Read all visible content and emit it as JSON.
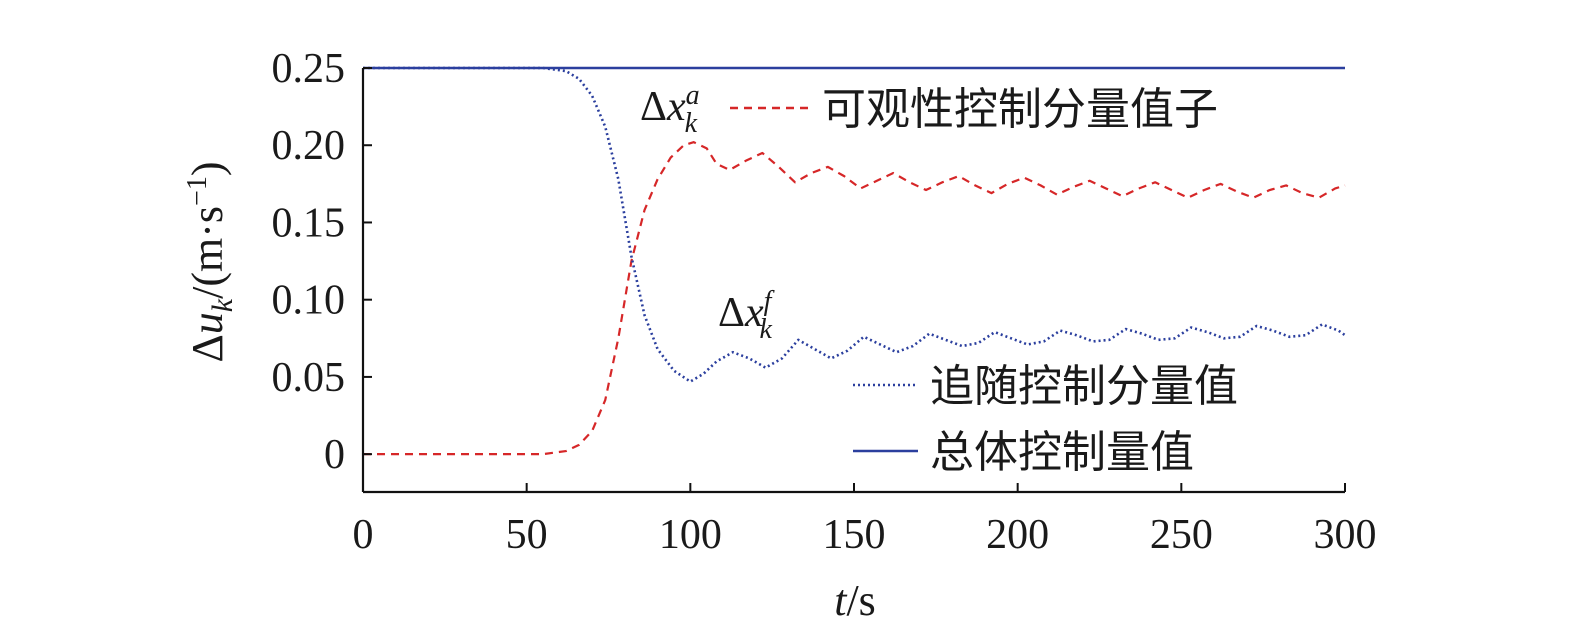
{
  "chart_data": {
    "type": "line",
    "title": "",
    "xlabel": {
      "var": "t",
      "unit": "/s"
    },
    "ylabel": {
      "prefix": "Δ",
      "var": "u",
      "sub": "k",
      "unit": "/(m·s",
      "sup": "−1",
      "close": ")"
    },
    "xlim": [
      0,
      300
    ],
    "ylim": [
      -0.0245,
      0.25
    ],
    "xticks": [
      0,
      50,
      100,
      150,
      200,
      250,
      300
    ],
    "xtick_labels": [
      "0",
      "50",
      "100",
      "150",
      "200",
      "250",
      "300"
    ],
    "yticks": [
      0,
      0.05,
      0.1,
      0.15,
      0.2,
      0.25
    ],
    "ytick_labels": [
      "0",
      "0.05",
      "0.10",
      "0.15",
      "0.20",
      "0.25"
    ],
    "grid": false,
    "series": [
      {
        "name": "可观性控制分量值子",
        "style": "dashed",
        "color": "#d62728",
        "x": [
          0,
          55,
          62,
          66,
          70,
          74,
          78,
          82,
          86,
          90,
          94,
          98,
          101,
          105,
          108,
          112,
          117,
          122,
          127,
          132,
          137,
          142,
          147,
          152,
          157,
          162,
          167,
          172,
          177,
          182,
          187,
          192,
          197,
          202,
          207,
          212,
          217,
          222,
          227,
          232,
          237,
          242,
          247,
          252,
          257,
          262,
          267,
          272,
          277,
          282,
          287,
          292,
          297,
          300
        ],
        "y": [
          0,
          0,
          0.002,
          0.006,
          0.015,
          0.035,
          0.075,
          0.125,
          0.158,
          0.178,
          0.192,
          0.2,
          0.202,
          0.198,
          0.188,
          0.184,
          0.19,
          0.195,
          0.186,
          0.176,
          0.182,
          0.186,
          0.18,
          0.172,
          0.177,
          0.182,
          0.176,
          0.171,
          0.176,
          0.18,
          0.174,
          0.169,
          0.175,
          0.179,
          0.174,
          0.168,
          0.173,
          0.177,
          0.172,
          0.167,
          0.172,
          0.176,
          0.171,
          0.166,
          0.171,
          0.175,
          0.17,
          0.166,
          0.171,
          0.174,
          0.169,
          0.166,
          0.172,
          0.174
        ]
      },
      {
        "name": "追随控制分量值",
        "style": "dotted",
        "color": "#2b3f9e",
        "x": [
          0,
          55,
          62,
          66,
          70,
          74,
          78,
          82,
          86,
          90,
          95,
          100,
          104,
          108,
          113,
          118,
          123,
          128,
          133,
          138,
          143,
          148,
          153,
          158,
          163,
          168,
          173,
          178,
          183,
          188,
          193,
          198,
          203,
          208,
          213,
          218,
          223,
          228,
          233,
          238,
          243,
          248,
          253,
          258,
          263,
          268,
          273,
          278,
          283,
          288,
          293,
          298,
          300
        ],
        "y": [
          0.25,
          0.25,
          0.248,
          0.243,
          0.232,
          0.212,
          0.178,
          0.128,
          0.09,
          0.068,
          0.054,
          0.047,
          0.052,
          0.06,
          0.066,
          0.062,
          0.056,
          0.062,
          0.074,
          0.068,
          0.062,
          0.067,
          0.076,
          0.071,
          0.066,
          0.07,
          0.078,
          0.074,
          0.07,
          0.072,
          0.079,
          0.075,
          0.071,
          0.073,
          0.08,
          0.077,
          0.073,
          0.074,
          0.081,
          0.078,
          0.074,
          0.075,
          0.082,
          0.079,
          0.075,
          0.076,
          0.083,
          0.08,
          0.076,
          0.077,
          0.084,
          0.08,
          0.077
        ]
      },
      {
        "name": "总体控制量值",
        "style": "solid",
        "color": "#2b3f9e",
        "x": [
          0,
          300
        ],
        "y": [
          0.25,
          0.25
        ]
      }
    ],
    "annotations": [
      {
        "id": "xa",
        "prefix": "Δ",
        "var": "x",
        "sup": "a",
        "sub": "k",
        "x": 88,
        "y": 0.218
      },
      {
        "id": "xf",
        "prefix": "Δ",
        "var": "x",
        "sup": "f",
        "sub": "k",
        "x": 109,
        "y": 0.09
      }
    ],
    "legend": {
      "placement": "inline",
      "entries": [
        "可观性控制分量值子",
        "追随控制分量值",
        "总体控制量值"
      ]
    }
  }
}
